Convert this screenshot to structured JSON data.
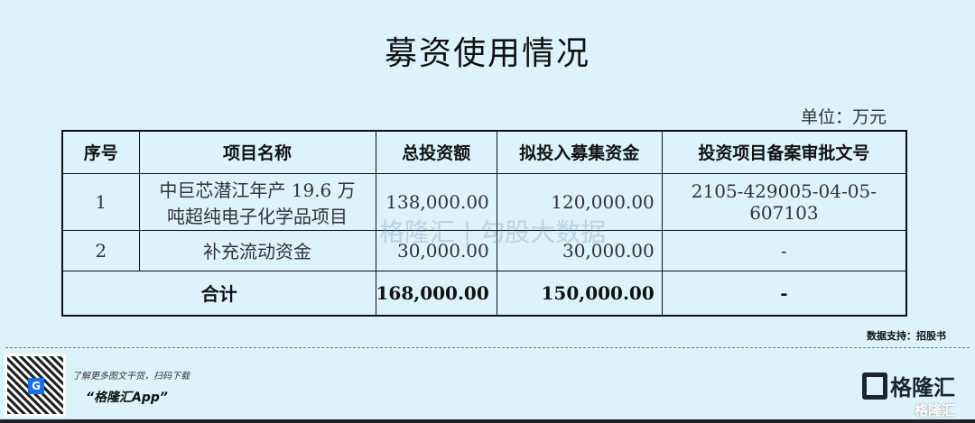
{
  "title": "募资使用情况",
  "unit": "单位：万元",
  "table": {
    "headers": [
      "序号",
      "项目名称",
      "总投资额",
      "拟投入募集资金",
      "投资项目备案审批文号"
    ],
    "rows": [
      {
        "no": "1",
        "name_line1": "中巨芯潜江年产 19.6 万",
        "name_line2": "吨超纯电子化学品项目",
        "total": "138,000.00",
        "raised": "120,000.00",
        "approval": "2105-429005-04-05-607103"
      },
      {
        "no": "2",
        "name": "补充流动资金",
        "total": "30,000.00",
        "raised": "30,000.00",
        "approval": "-"
      }
    ],
    "sum": {
      "label": "合计",
      "total": "168,000.00",
      "raised": "150,000.00",
      "approval": "-"
    }
  },
  "watermark": "格隆汇 | 勾股大数据",
  "source": "数据支持：招股书",
  "footer": {
    "line1": "了解更多图文干货，扫码下载",
    "line2": "“格隆汇App”",
    "logo": "格隆汇",
    "logo_sub": "格隆汇",
    "qr_letter": "G"
  }
}
